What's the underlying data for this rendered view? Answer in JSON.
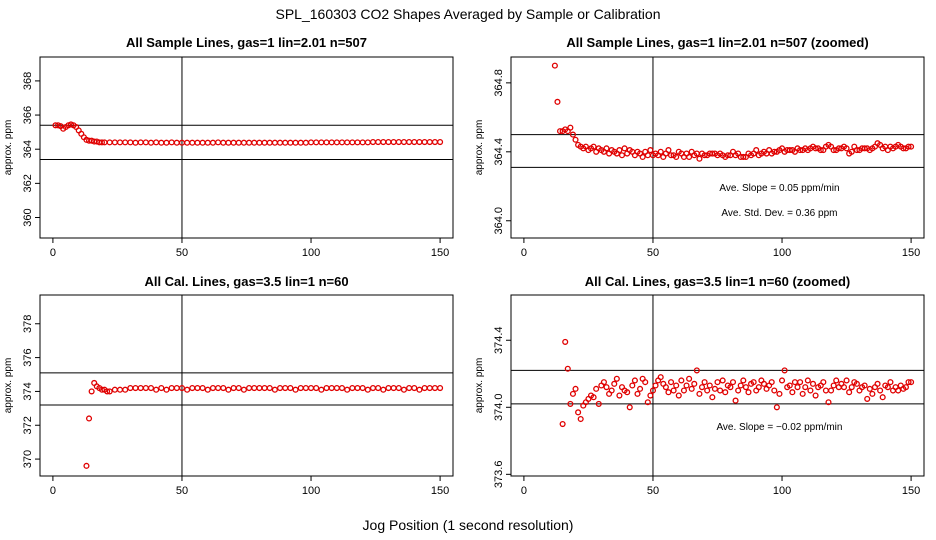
{
  "figure": {
    "title": "SPL_160303  CO2 Shapes Averaged by Sample or Calibration",
    "xlabel": "Jog Position (1 second resolution)"
  },
  "chart_data": [
    {
      "type": "scatter",
      "title": "All Sample Lines, gas=1 lin=2.01 n=507",
      "ylabel": "approx. ppm",
      "xlim": [
        -5,
        155
      ],
      "ylim": [
        358.8,
        369.4
      ],
      "xticks": [
        0,
        50,
        100,
        150
      ],
      "yticks": [
        360,
        362,
        364,
        366,
        368
      ],
      "hlines": [
        365.4,
        363.4
      ],
      "vlines": [
        50
      ],
      "annotations": [],
      "marker_color": "#e00000",
      "series": [
        {
          "x": [
            1,
            2,
            3,
            4,
            5,
            6,
            7,
            8,
            9,
            10,
            11,
            12,
            13,
            14,
            15,
            16,
            17,
            18,
            19,
            20,
            22,
            24,
            26,
            28,
            30,
            32,
            34,
            36,
            38,
            40,
            42,
            44,
            46,
            48,
            50,
            52,
            54,
            56,
            58,
            60,
            62,
            64,
            66,
            68,
            70,
            72,
            74,
            76,
            78,
            80,
            82,
            84,
            86,
            88,
            90,
            92,
            94,
            96,
            98,
            100,
            102,
            104,
            106,
            108,
            110,
            112,
            114,
            116,
            118,
            120,
            122,
            124,
            126,
            128,
            130,
            132,
            134,
            136,
            138,
            140,
            142,
            144,
            146,
            148,
            150
          ],
          "y": [
            365.4,
            365.4,
            365.35,
            365.2,
            365.3,
            365.4,
            365.45,
            365.4,
            365.3,
            365.1,
            364.9,
            364.7,
            364.55,
            364.5,
            364.5,
            364.45,
            364.45,
            364.4,
            364.4,
            364.4,
            364.4,
            364.4,
            364.4,
            364.4,
            364.4,
            364.38,
            364.4,
            364.4,
            364.38,
            364.4,
            364.38,
            364.38,
            364.4,
            364.38,
            364.38,
            364.38,
            364.38,
            364.38,
            364.38,
            364.38,
            364.38,
            364.4,
            364.38,
            364.38,
            364.38,
            364.38,
            364.38,
            364.38,
            364.38,
            364.38,
            364.38,
            364.38,
            364.38,
            364.38,
            364.38,
            364.38,
            364.38,
            364.38,
            364.38,
            364.4,
            364.4,
            364.4,
            364.4,
            364.4,
            364.4,
            364.4,
            364.4,
            364.4,
            364.4,
            364.4,
            364.4,
            364.42,
            364.42,
            364.42,
            364.42,
            364.42,
            364.42,
            364.42,
            364.42,
            364.42,
            364.42,
            364.42,
            364.42,
            364.42,
            364.42
          ]
        }
      ]
    },
    {
      "type": "scatter",
      "title": "All Sample Lines, gas=1 lin=2.01 n=507 (zoomed)",
      "ylabel": "approx. ppm",
      "xlim": [
        -5,
        155
      ],
      "ylim": [
        363.9,
        364.95
      ],
      "xticks": [
        0,
        50,
        100,
        150
      ],
      "yticks": [
        364.0,
        364.4,
        364.8
      ],
      "ytick_labels": [
        "364.0",
        "364.4",
        "364.8"
      ],
      "hlines": [
        364.5,
        364.31
      ],
      "vlines": [
        50
      ],
      "annotations": [
        "Ave. Slope =  0.05  ppm/min",
        "Ave. Std. Dev. =  0.36  ppm"
      ],
      "marker_color": "#e00000",
      "series": [
        {
          "x": [
            12,
            13,
            14,
            15,
            16,
            17,
            18,
            19,
            20,
            21,
            22,
            23,
            24,
            25,
            26,
            27,
            28,
            29,
            30,
            31,
            32,
            33,
            34,
            35,
            36,
            37,
            38,
            39,
            40,
            41,
            42,
            43,
            44,
            45,
            46,
            47,
            48,
            49,
            50,
            51,
            52,
            53,
            54,
            55,
            56,
            57,
            58,
            59,
            60,
            61,
            62,
            63,
            64,
            65,
            66,
            67,
            68,
            69,
            70,
            71,
            72,
            73,
            74,
            75,
            76,
            77,
            78,
            79,
            80,
            81,
            82,
            83,
            84,
            85,
            86,
            87,
            88,
            89,
            90,
            91,
            92,
            93,
            94,
            95,
            96,
            97,
            98,
            99,
            100,
            101,
            102,
            103,
            104,
            105,
            106,
            107,
            108,
            109,
            110,
            111,
            112,
            113,
            114,
            115,
            116,
            117,
            118,
            119,
            120,
            121,
            122,
            123,
            124,
            125,
            126,
            127,
            128,
            129,
            130,
            131,
            132,
            133,
            134,
            135,
            136,
            137,
            138,
            139,
            140,
            141,
            142,
            143,
            144,
            145,
            146,
            147,
            148,
            149,
            150
          ],
          "y": [
            364.9,
            364.69,
            364.52,
            364.52,
            364.53,
            364.52,
            364.54,
            364.5,
            364.47,
            364.44,
            364.43,
            364.42,
            364.43,
            364.41,
            364.42,
            364.43,
            364.4,
            364.42,
            364.41,
            364.4,
            364.42,
            364.39,
            364.41,
            364.4,
            364.39,
            364.41,
            364.38,
            364.42,
            364.39,
            364.41,
            364.4,
            364.38,
            364.4,
            364.39,
            364.37,
            364.4,
            364.38,
            364.41,
            364.38,
            364.39,
            364.38,
            364.4,
            364.37,
            364.39,
            364.41,
            364.38,
            364.38,
            364.37,
            364.4,
            364.39,
            364.37,
            364.39,
            364.37,
            364.4,
            364.38,
            364.39,
            364.36,
            364.39,
            364.38,
            364.38,
            364.39,
            364.39,
            364.39,
            364.38,
            364.39,
            364.38,
            364.37,
            364.38,
            364.38,
            364.4,
            364.38,
            364.39,
            364.37,
            364.37,
            364.37,
            364.39,
            364.38,
            364.39,
            364.41,
            364.38,
            364.39,
            364.4,
            364.39,
            364.41,
            364.39,
            364.4,
            364.4,
            364.41,
            364.42,
            364.4,
            364.41,
            364.41,
            364.41,
            364.4,
            364.42,
            364.41,
            364.41,
            364.42,
            364.41,
            364.42,
            364.43,
            364.42,
            364.42,
            364.41,
            364.41,
            364.43,
            364.44,
            364.43,
            364.41,
            364.41,
            364.42,
            364.42,
            364.43,
            364.42,
            364.39,
            364.4,
            364.43,
            364.41,
            364.41,
            364.42,
            364.42,
            364.42,
            364.41,
            364.42,
            364.43,
            364.45,
            364.44,
            364.42,
            364.43,
            364.41,
            364.43,
            364.42,
            364.43,
            364.44,
            364.43,
            364.42,
            364.42,
            364.43,
            364.43
          ]
        }
      ]
    },
    {
      "type": "scatter",
      "title": "All Cal. Lines, gas=3.5 lin=1 n=60",
      "ylabel": "approx. ppm",
      "xlim": [
        -5,
        155
      ],
      "ylim": [
        369,
        379.7
      ],
      "xticks": [
        0,
        50,
        100,
        150
      ],
      "yticks": [
        370,
        372,
        374,
        376,
        378
      ],
      "hlines": [
        375.1,
        373.2
      ],
      "vlines": [
        50
      ],
      "annotations": [],
      "marker_color": "#e00000",
      "series": [
        {
          "x": [
            13,
            14,
            15,
            16,
            17,
            18,
            19,
            20,
            21,
            22,
            24,
            26,
            28,
            30,
            32,
            34,
            36,
            38,
            40,
            42,
            44,
            46,
            48,
            50,
            52,
            54,
            56,
            58,
            60,
            62,
            64,
            66,
            68,
            70,
            72,
            74,
            76,
            78,
            80,
            82,
            84,
            86,
            88,
            90,
            92,
            94,
            96,
            98,
            100,
            102,
            104,
            106,
            108,
            110,
            112,
            114,
            116,
            118,
            120,
            122,
            124,
            126,
            128,
            130,
            132,
            134,
            136,
            138,
            140,
            142,
            144,
            146,
            148,
            150
          ],
          "y": [
            369.6,
            372.4,
            374.0,
            374.5,
            374.3,
            374.2,
            374.1,
            374.1,
            374.0,
            374.0,
            374.1,
            374.1,
            374.1,
            374.2,
            374.2,
            374.2,
            374.2,
            374.2,
            374.1,
            374.2,
            374.1,
            374.2,
            374.2,
            374.2,
            374.1,
            374.2,
            374.2,
            374.2,
            374.1,
            374.2,
            374.2,
            374.2,
            374.1,
            374.2,
            374.2,
            374.1,
            374.2,
            374.2,
            374.2,
            374.2,
            374.2,
            374.1,
            374.2,
            374.2,
            374.2,
            374.1,
            374.2,
            374.2,
            374.2,
            374.2,
            374.1,
            374.2,
            374.2,
            374.2,
            374.2,
            374.1,
            374.2,
            374.2,
            374.2,
            374.1,
            374.2,
            374.2,
            374.1,
            374.2,
            374.2,
            374.2,
            374.1,
            374.2,
            374.2,
            374.1,
            374.2,
            374.2,
            374.2,
            374.2
          ]
        }
      ]
    },
    {
      "type": "scatter",
      "title": "All Cal. Lines, gas=3.5 lin=1 n=60 (zoomed)",
      "ylabel": "approx. ppm",
      "xlim": [
        -5,
        155
      ],
      "ylim": [
        373.59,
        374.67
      ],
      "xticks": [
        0,
        50,
        100,
        150
      ],
      "yticks": [
        373.6,
        374.0,
        374.4
      ],
      "ytick_labels": [
        "373.6",
        "374.0",
        "374.4"
      ],
      "hlines": [
        374.22,
        374.02
      ],
      "vlines": [
        50
      ],
      "annotations": [
        "Ave. Slope =  −0.02  ppm/min"
      ],
      "marker_color": "#e00000",
      "series": [
        {
          "x": [
            15,
            16,
            17,
            18,
            19,
            20,
            21,
            22,
            23,
            24,
            25,
            26,
            27,
            28,
            29,
            30,
            31,
            32,
            33,
            34,
            35,
            36,
            37,
            38,
            39,
            40,
            41,
            42,
            43,
            44,
            45,
            46,
            47,
            48,
            49,
            50,
            51,
            52,
            53,
            54,
            55,
            56,
            57,
            58,
            59,
            60,
            61,
            62,
            63,
            64,
            65,
            66,
            67,
            68,
            69,
            70,
            71,
            72,
            73,
            74,
            75,
            76,
            77,
            78,
            79,
            80,
            81,
            82,
            83,
            84,
            85,
            86,
            87,
            88,
            89,
            90,
            91,
            92,
            93,
            94,
            95,
            96,
            97,
            98,
            99,
            100,
            101,
            102,
            103,
            104,
            105,
            106,
            107,
            108,
            109,
            110,
            111,
            112,
            113,
            114,
            115,
            116,
            117,
            118,
            119,
            120,
            121,
            122,
            123,
            124,
            125,
            126,
            127,
            128,
            129,
            130,
            131,
            132,
            133,
            134,
            135,
            136,
            137,
            138,
            139,
            140,
            141,
            142,
            143,
            144,
            145,
            146,
            147,
            148,
            149,
            150
          ],
          "y": [
            373.9,
            374.39,
            374.23,
            374.02,
            374.08,
            374.11,
            373.97,
            373.93,
            374.01,
            374.03,
            374.05,
            374.07,
            374.06,
            374.11,
            374.02,
            374.13,
            374.15,
            374.12,
            374.08,
            374.1,
            374.14,
            374.17,
            374.07,
            374.12,
            374.1,
            374.09,
            374.0,
            374.13,
            374.16,
            374.08,
            374.11,
            374.17,
            374.15,
            374.03,
            374.07,
            374.1,
            374.13,
            374.16,
            374.18,
            374.14,
            374.12,
            374.09,
            374.15,
            374.1,
            374.13,
            374.07,
            374.16,
            374.1,
            374.13,
            374.17,
            374.11,
            374.14,
            374.22,
            374.08,
            374.12,
            374.15,
            374.1,
            374.13,
            374.06,
            374.11,
            374.15,
            374.1,
            374.16,
            374.09,
            374.13,
            374.12,
            374.15,
            374.04,
            374.1,
            374.13,
            374.16,
            374.12,
            374.09,
            374.14,
            374.15,
            374.1,
            374.12,
            374.16,
            374.14,
            374.11,
            374.13,
            374.15,
            374.1,
            374.0,
            374.08,
            374.16,
            374.22,
            374.12,
            374.13,
            374.09,
            374.15,
            374.12,
            374.15,
            374.08,
            374.12,
            374.16,
            374.1,
            374.14,
            374.07,
            374.12,
            374.13,
            374.15,
            374.1,
            374.03,
            374.1,
            374.13,
            374.16,
            374.12,
            374.14,
            374.12,
            374.16,
            374.09,
            374.12,
            374.15,
            374.14,
            374.1,
            374.12,
            374.13,
            374.05,
            374.11,
            374.08,
            374.12,
            374.14,
            374.1,
            374.06,
            374.13,
            374.12,
            374.15,
            374.1,
            374.12,
            374.1,
            374.13,
            374.11,
            374.12,
            374.15,
            374.15
          ]
        }
      ]
    }
  ]
}
